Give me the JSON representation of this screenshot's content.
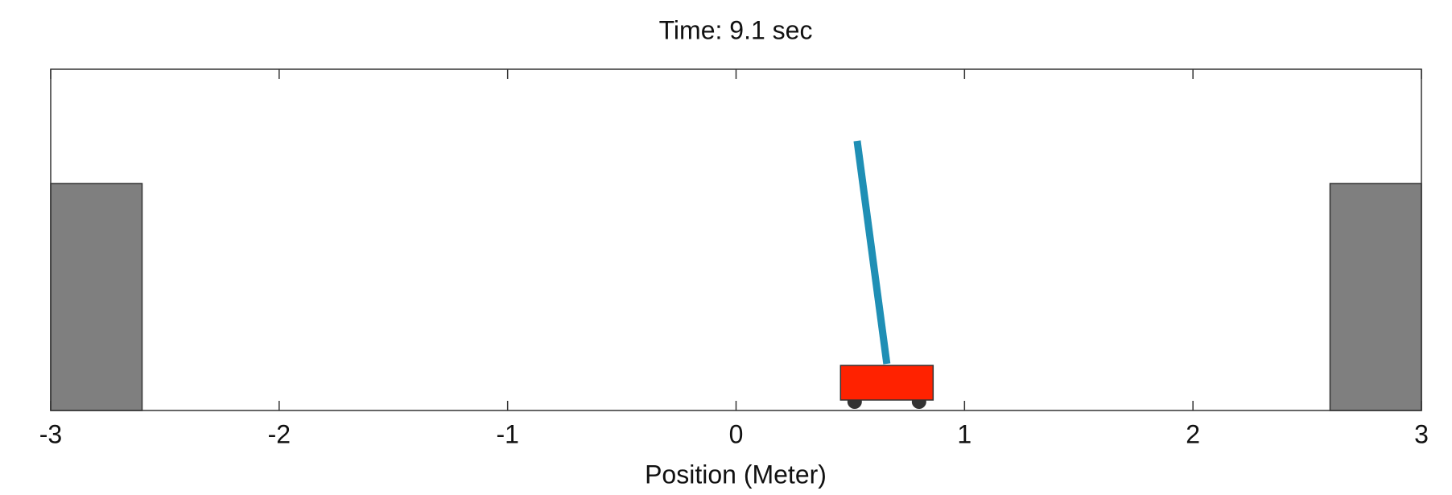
{
  "chart_data": {
    "type": "cartpole",
    "title": "Time: 9.1 sec",
    "xlabel": "Position (Meter)",
    "xlim": [
      -3,
      3
    ],
    "xticks": [
      -3,
      -2,
      -1,
      0,
      1,
      2,
      3
    ],
    "cart_position": 0.66,
    "pole_tip_x": 0.53,
    "walls": [
      [
        -3,
        -2.6
      ],
      [
        2.6,
        3
      ]
    ],
    "cart_color": "#ff2200",
    "pole_color": "#1f8fb5",
    "wall_color": "#7f7f7f"
  }
}
